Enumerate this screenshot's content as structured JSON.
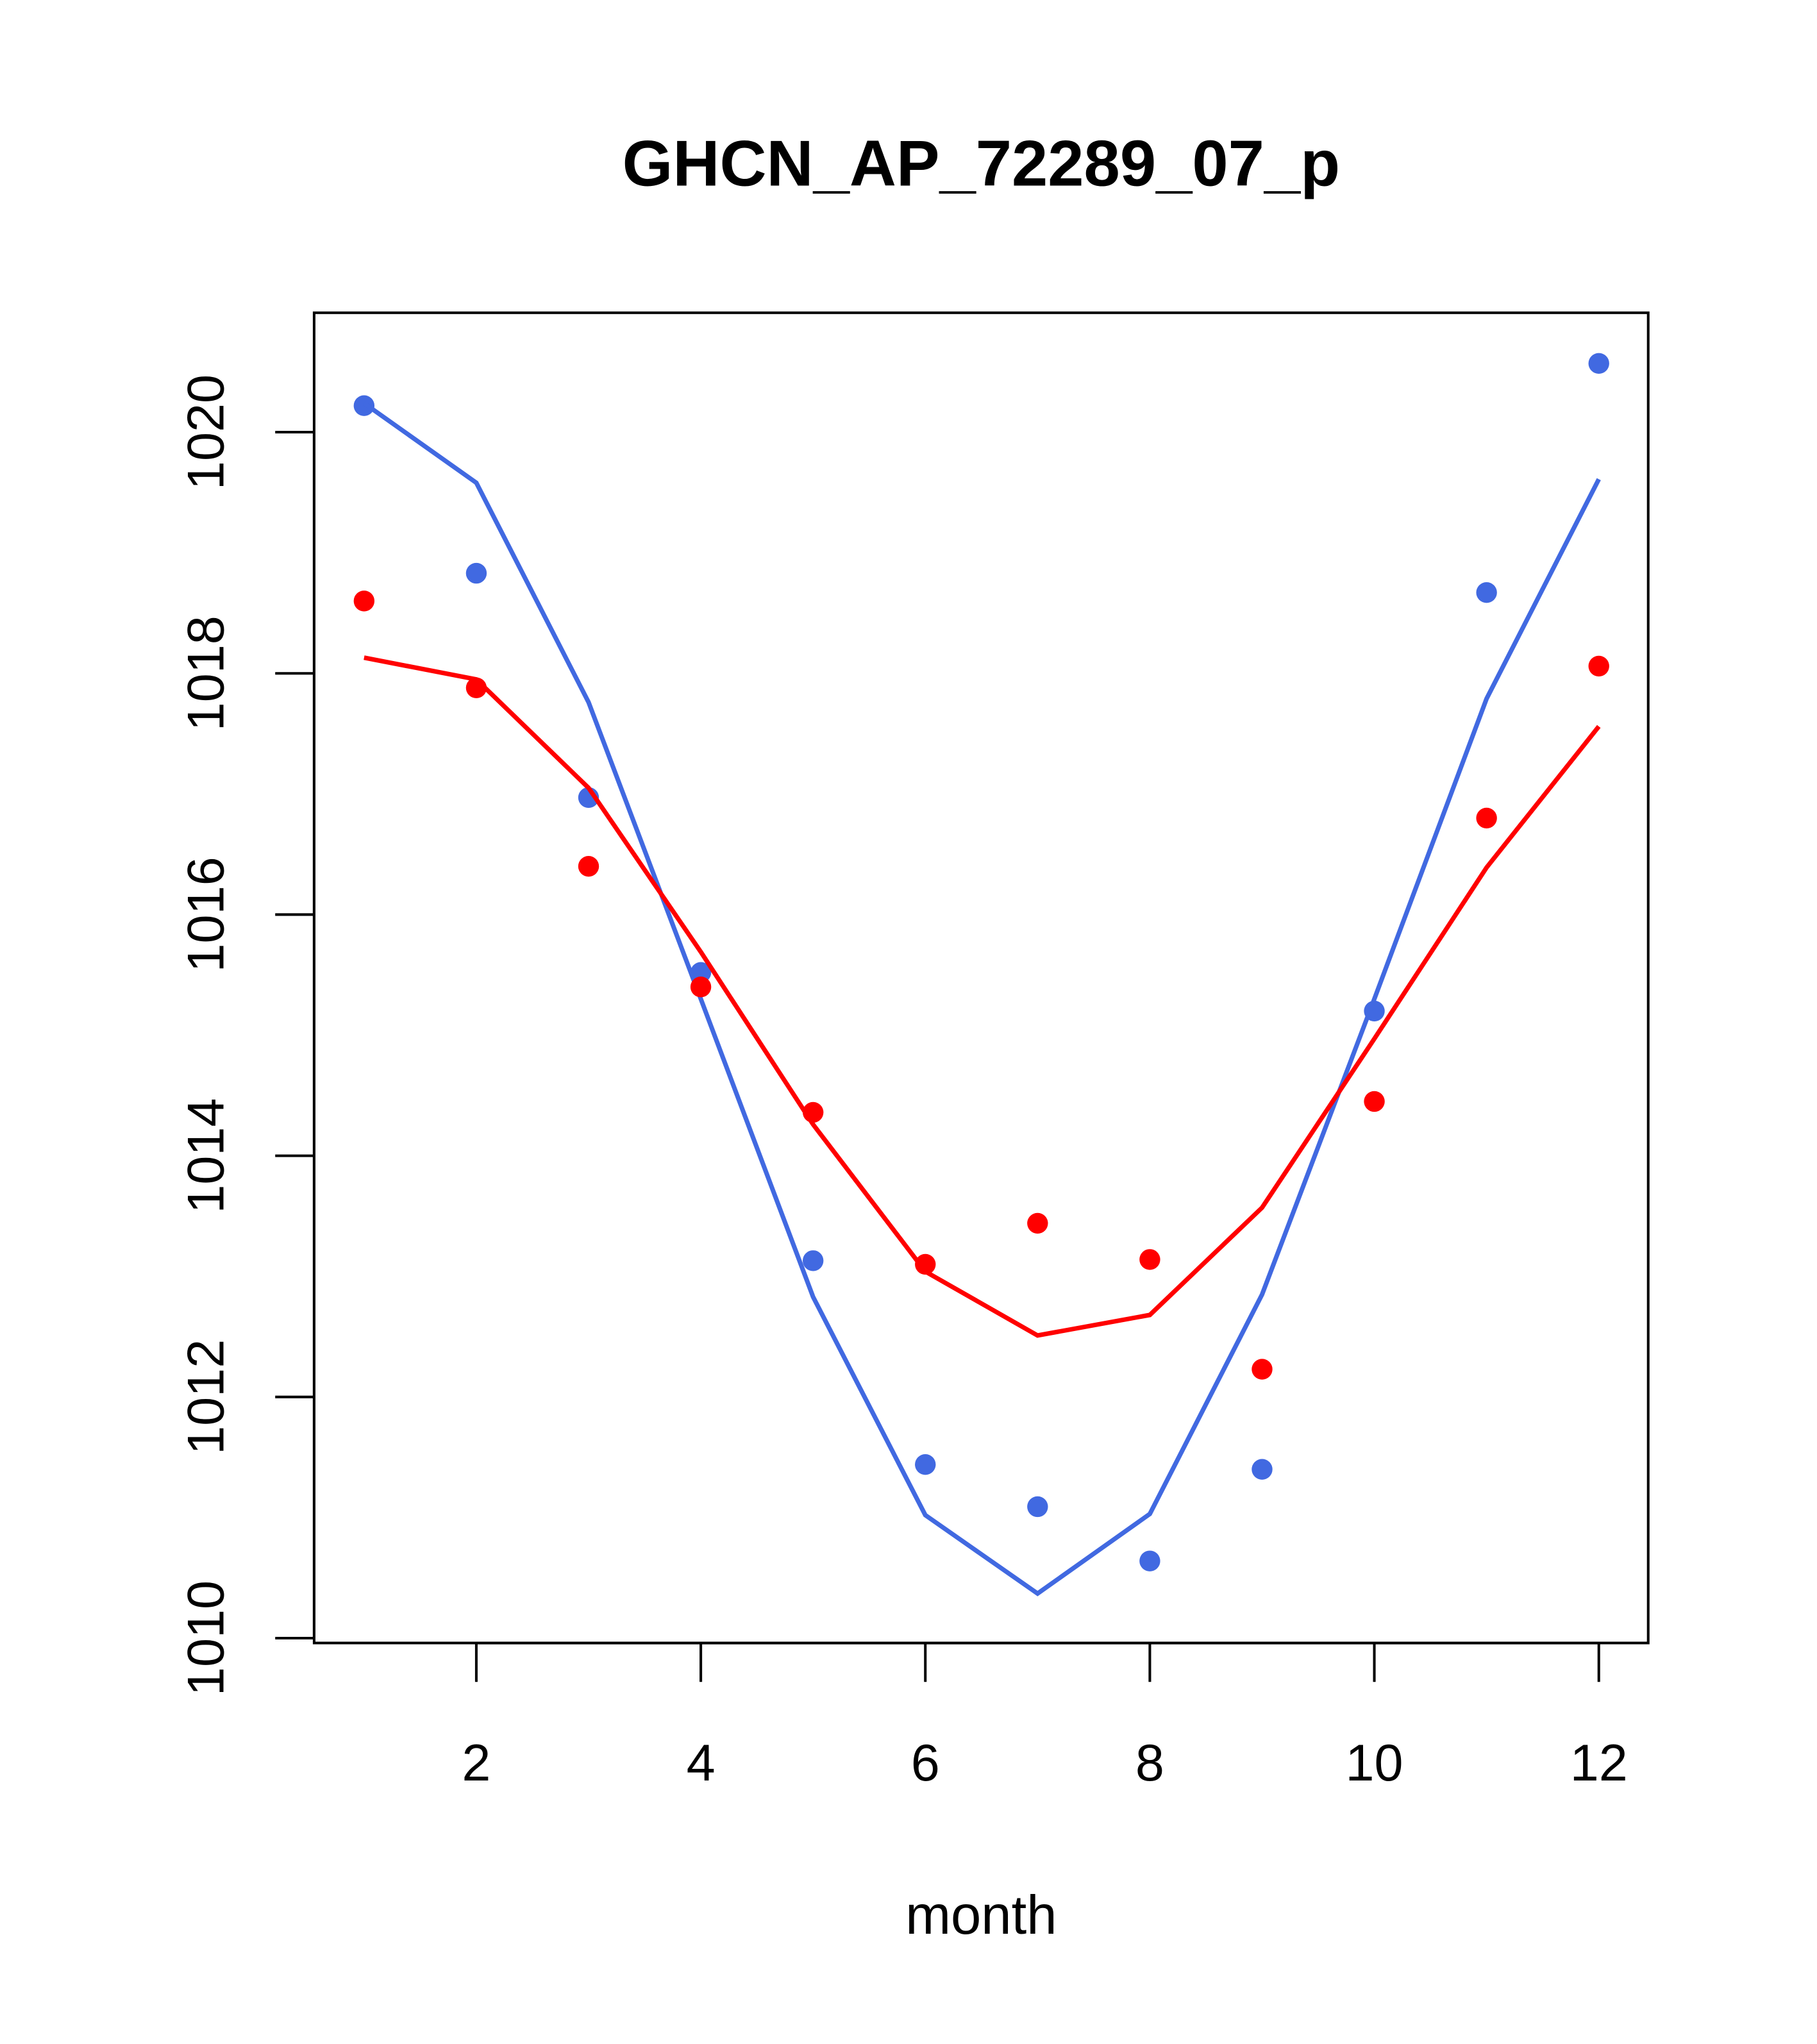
{
  "chart_data": {
    "type": "line",
    "title": "GHCN_AP_72289_07_p",
    "xlabel": "month",
    "ylabel": "",
    "xlim": [
      0.555,
      12.44
    ],
    "ylim": [
      1009.96,
      1020.99
    ],
    "xticks": [
      2,
      4,
      6,
      8,
      10,
      12
    ],
    "yticks": [
      1010,
      1012,
      1014,
      1016,
      1018,
      1020
    ],
    "grid": false,
    "x": [
      1,
      2,
      3,
      4,
      5,
      6,
      7,
      8,
      9,
      10,
      11,
      12
    ],
    "series": [
      {
        "name": "blue-points",
        "kind": "points",
        "color": "#4169E1",
        "values": [
          1020.22,
          1018.83,
          1016.97,
          1015.52,
          1013.13,
          1011.44,
          1011.09,
          1010.64,
          1011.4,
          1015.2,
          1018.67,
          1020.57
        ]
      },
      {
        "name": "blue-line",
        "kind": "line",
        "color": "#4169E1",
        "values": [
          1020.24,
          1019.58,
          1017.76,
          1015.3,
          1012.83,
          1011.02,
          1010.37,
          1011.03,
          1012.85,
          1015.3,
          1017.79,
          1019.61
        ]
      },
      {
        "name": "red-points",
        "kind": "points",
        "color": "#FF0000",
        "values": [
          1018.6,
          1017.88,
          1016.4,
          1015.4,
          1014.36,
          1013.1,
          1013.44,
          1013.14,
          1012.23,
          1014.45,
          1016.8,
          1018.06
        ]
      },
      {
        "name": "red-line",
        "kind": "line",
        "color": "#FF0000",
        "values": [
          1018.13,
          1017.95,
          1017.05,
          1015.69,
          1014.26,
          1013.04,
          1012.51,
          1012.68,
          1013.57,
          1014.97,
          1016.39,
          1017.56
        ]
      }
    ]
  }
}
